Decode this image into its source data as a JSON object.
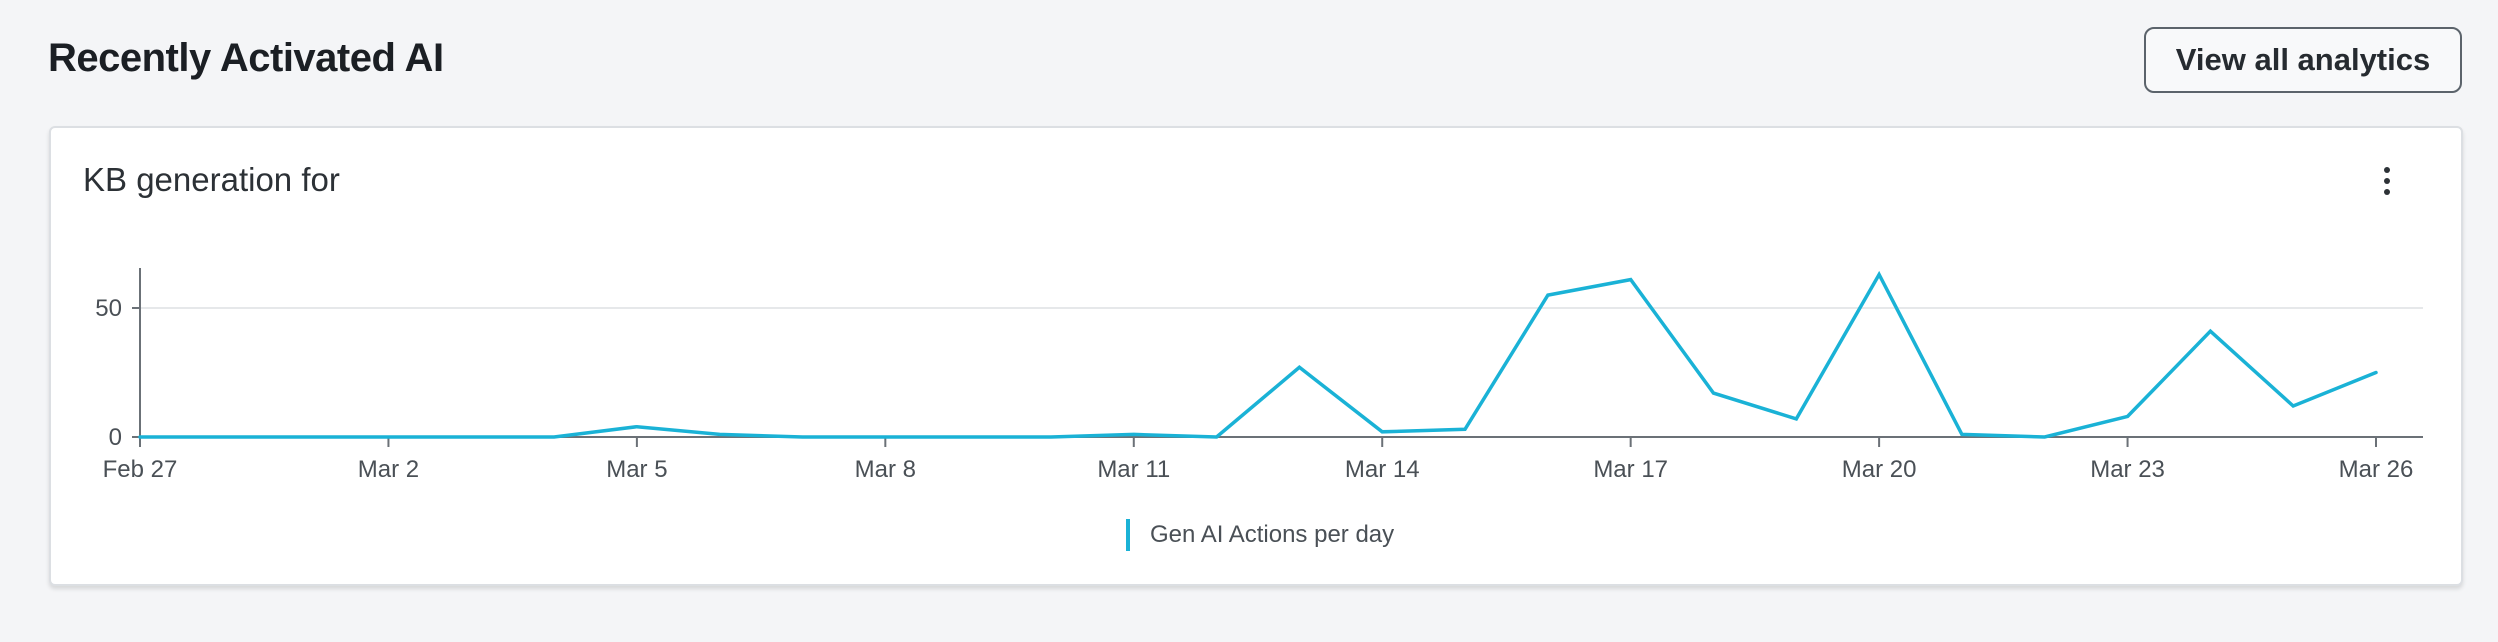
{
  "header": {
    "title": "Recently Activated AI",
    "view_all_label": "View all analytics"
  },
  "card": {
    "title": "KB generation for",
    "menu_icon": "more-vertical-icon"
  },
  "colors": {
    "series": "#1ab2d6",
    "axis": "#6b7177",
    "grid": "#e6e8ea"
  },
  "chart_data": {
    "type": "line",
    "title": "KB generation for",
    "xlabel": "",
    "ylabel": "",
    "ylim": [
      0,
      65
    ],
    "yticks": [
      0,
      50
    ],
    "grid": true,
    "legend_position": "bottom-center",
    "x": [
      "Feb 27",
      "Feb 28",
      "Mar 1",
      "Mar 2",
      "Mar 3",
      "Mar 4",
      "Mar 5",
      "Mar 6",
      "Mar 7",
      "Mar 8",
      "Mar 9",
      "Mar 10",
      "Mar 11",
      "Mar 12",
      "Mar 13",
      "Mar 14",
      "Mar 15",
      "Mar 16",
      "Mar 17",
      "Mar 18",
      "Mar 19",
      "Mar 20",
      "Mar 21",
      "Mar 22",
      "Mar 23",
      "Mar 24",
      "Mar 25",
      "Mar 26"
    ],
    "xtick_labels": [
      "Feb 27",
      "Mar 2",
      "Mar 5",
      "Mar 8",
      "Mar 11",
      "Mar 14",
      "Mar 17",
      "Mar 20",
      "Mar 23",
      "Mar 26"
    ],
    "series": [
      {
        "name": "Gen AI Actions per day",
        "values": [
          0,
          0,
          0,
          0,
          0,
          0,
          4,
          1,
          0,
          0,
          0,
          0,
          1,
          0,
          27,
          2,
          3,
          55,
          61,
          17,
          7,
          63,
          1,
          0,
          8,
          41,
          12,
          25
        ]
      }
    ]
  }
}
